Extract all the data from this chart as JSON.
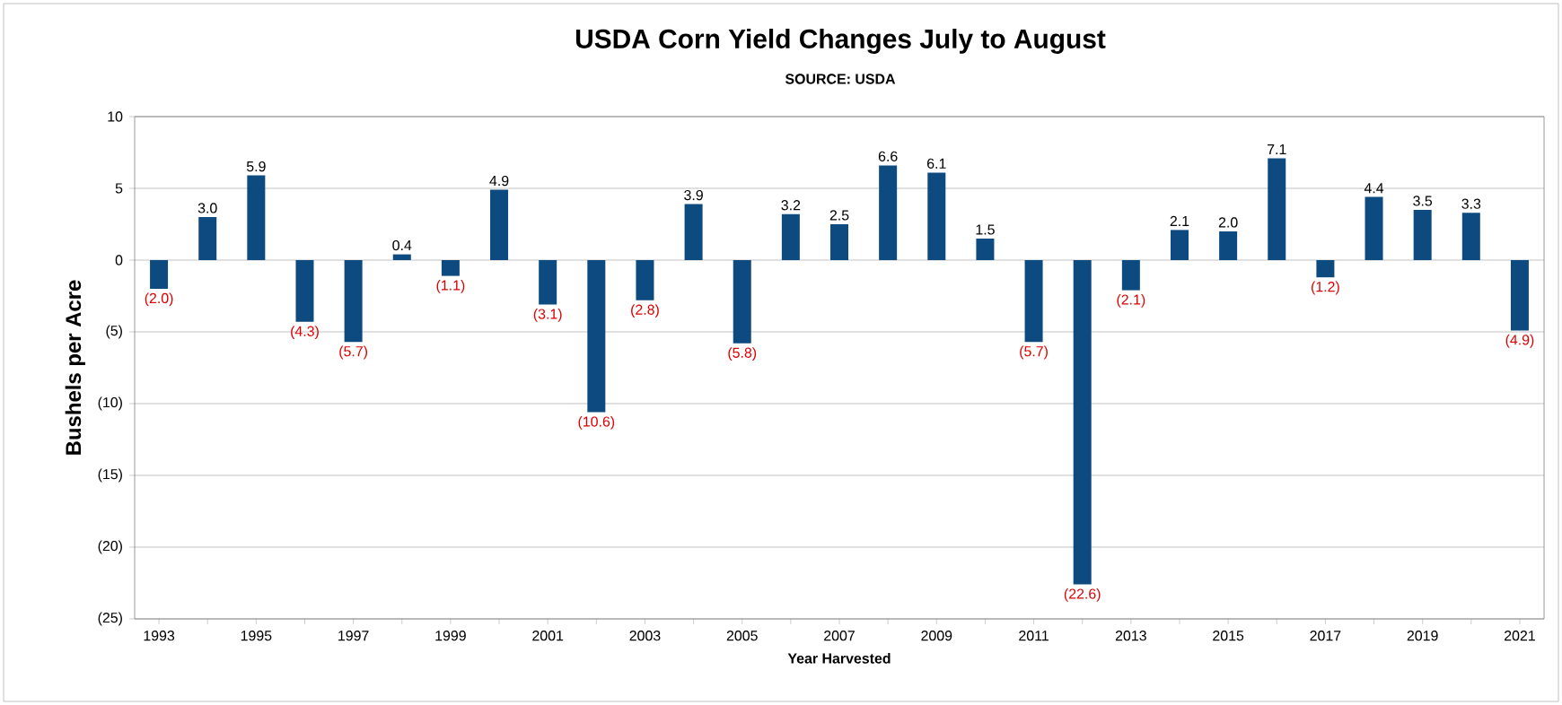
{
  "chart_data": {
    "type": "bar",
    "title": "USDA Corn Yield Changes July to August",
    "subtitle": "SOURCE: USDA",
    "xlabel": "Year Harvested",
    "ylabel": "Bushels per Acre",
    "categories": [
      "1993",
      null,
      "1995",
      null,
      "1997",
      null,
      "1999",
      null,
      "2001",
      null,
      "2003",
      null,
      "2005",
      null,
      "2007",
      null,
      "2009",
      null,
      "2011",
      null,
      "2013",
      null,
      "2015",
      null,
      "2017",
      null,
      "2019",
      null,
      "2021"
    ],
    "values": [
      -2.0,
      3.0,
      5.9,
      -4.3,
      -5.7,
      0.4,
      -1.1,
      4.9,
      -3.1,
      -10.6,
      -2.8,
      3.9,
      -5.8,
      3.2,
      2.5,
      6.6,
      6.1,
      1.5,
      -5.7,
      -22.6,
      -2.1,
      2.1,
      2.0,
      7.1,
      -1.2,
      4.4,
      3.5,
      3.3,
      -4.9
    ],
    "value_labels": [
      "(2.0)",
      "3.0",
      "5.9",
      "(4.3)",
      "(5.7)",
      "0.4",
      "(1.1)",
      "4.9",
      "(3.1)",
      "(10.6)",
      "(2.8)",
      "3.9",
      "(5.8)",
      "3.2",
      "2.5",
      "6.6",
      "6.1",
      "1.5",
      "(5.7)",
      "(22.6)",
      "(2.1)",
      "2.1",
      "2.0",
      "7.1",
      "(1.2)",
      "4.4",
      "3.5",
      "3.3",
      "(4.9)"
    ],
    "color": "#0d4a80",
    "ylim": [
      -25,
      10
    ],
    "yticks": [
      {
        "value": -25,
        "label": "(25)"
      },
      {
        "value": -20,
        "label": "(20)"
      },
      {
        "value": -15,
        "label": "(15)"
      },
      {
        "value": -10,
        "label": "(10)"
      },
      {
        "value": -5,
        "label": "(5)"
      },
      0,
      5,
      10
    ],
    "grid": "y"
  }
}
